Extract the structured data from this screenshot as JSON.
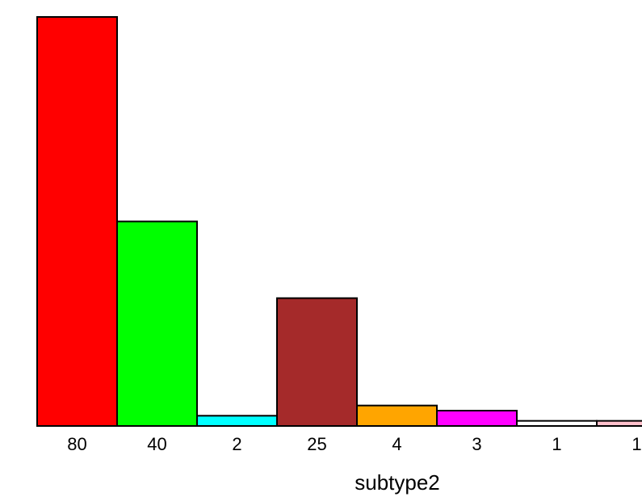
{
  "chart_data": {
    "type": "bar",
    "xlabel": "subtype2",
    "ylabel": "",
    "categories": [
      "80",
      "40",
      "2",
      "25",
      "4",
      "3",
      "1",
      "1"
    ],
    "values": [
      80,
      40,
      2,
      25,
      4,
      3,
      1,
      1
    ],
    "colors": [
      "#ff0000",
      "#00ff00",
      "#00ffff",
      "#a52a2a",
      "#ffa500",
      "#ff00ff",
      "#ffffff",
      "#ffc0cb"
    ],
    "ylim": [
      0,
      80
    ],
    "grid": false,
    "legend": "none"
  }
}
